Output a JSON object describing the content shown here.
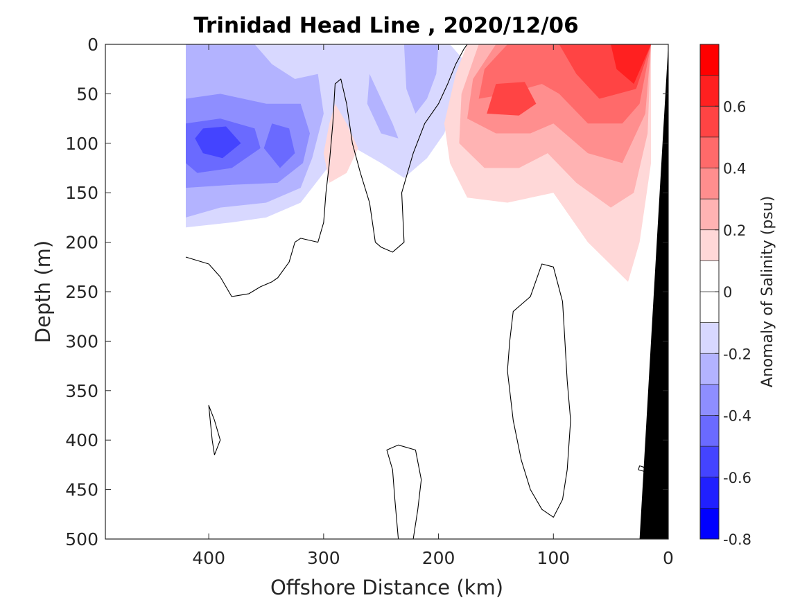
{
  "chart_data": {
    "type": "contour",
    "title": "Trinidad Head Line , 2020/12/06",
    "xlabel": "Offshore Distance (km)",
    "ylabel": "Depth (m)",
    "xlim": [
      490,
      0
    ],
    "ylim": [
      0,
      500
    ],
    "x_reversed": true,
    "y_reversed": true,
    "x_ticks": [
      400,
      300,
      200,
      100,
      0
    ],
    "y_ticks": [
      0,
      50,
      100,
      150,
      200,
      250,
      300,
      350,
      400,
      450,
      500
    ],
    "colorbar": {
      "label": "Anomaly of Salinity (psu)",
      "range": [
        -0.8,
        0.8
      ],
      "tick_values": [
        0.6,
        0.4,
        0.2,
        0,
        -0.2,
        -0.4,
        -0.6,
        -0.8
      ],
      "tick_labels": [
        "0.6",
        "0.4",
        "0.2",
        "0",
        "-0.2",
        "-0.4",
        "-0.6",
        "-0.8"
      ],
      "levels": [
        -0.8,
        -0.7,
        -0.6,
        -0.5,
        -0.4,
        -0.3,
        -0.2,
        -0.1,
        0.1,
        0.2,
        0.3,
        0.4,
        0.5,
        0.6,
        0.7,
        0.8
      ],
      "colors": [
        "#0000ff",
        "#2020ff",
        "#4444ff",
        "#6a6aff",
        "#8e8eff",
        "#b3b3ff",
        "#d8d8ff",
        "#ffffff",
        "#ffffff",
        "#ffd8d8",
        "#ffb3b3",
        "#ff8e8e",
        "#ff6a6a",
        "#ff4444",
        "#ff2020",
        "#ff0000"
      ]
    },
    "fill_regions": [
      {
        "level": -0.1,
        "color": "#d8d8ff",
        "points": [
          [
            420,
            0
          ],
          [
            190,
            0
          ],
          [
            175,
            20
          ],
          [
            185,
            55
          ],
          [
            195,
            90
          ],
          [
            210,
            115
          ],
          [
            230,
            135
          ],
          [
            250,
            120
          ],
          [
            280,
            100
          ],
          [
            300,
            130
          ],
          [
            320,
            160
          ],
          [
            350,
            175
          ],
          [
            380,
            180
          ],
          [
            420,
            185
          ]
        ]
      },
      {
        "level": -0.2,
        "color": "#b3b3ff",
        "points": [
          [
            420,
            0
          ],
          [
            360,
            0
          ],
          [
            345,
            20
          ],
          [
            325,
            35
          ],
          [
            305,
            30
          ],
          [
            300,
            70
          ],
          [
            310,
            115
          ],
          [
            320,
            145
          ],
          [
            350,
            160
          ],
          [
            390,
            165
          ],
          [
            420,
            175
          ]
        ]
      },
      {
        "level": -0.2,
        "color": "#b3b3ff",
        "points": [
          [
            260,
            30
          ],
          [
            240,
            80
          ],
          [
            235,
            95
          ],
          [
            250,
            90
          ],
          [
            262,
            60
          ]
        ]
      },
      {
        "level": -0.2,
        "color": "#b3b3ff",
        "points": [
          [
            230,
            0
          ],
          [
            200,
            0
          ],
          [
            202,
            30
          ],
          [
            210,
            55
          ],
          [
            220,
            70
          ],
          [
            228,
            45
          ]
        ]
      },
      {
        "level": -0.3,
        "color": "#8e8eff",
        "points": [
          [
            420,
            55
          ],
          [
            390,
            50
          ],
          [
            350,
            60
          ],
          [
            320,
            60
          ],
          [
            312,
            90
          ],
          [
            318,
            120
          ],
          [
            340,
            140
          ],
          [
            380,
            142
          ],
          [
            420,
            145
          ]
        ]
      },
      {
        "level": -0.4,
        "color": "#6a6aff",
        "points": [
          [
            420,
            80
          ],
          [
            390,
            75
          ],
          [
            360,
            85
          ],
          [
            355,
            105
          ],
          [
            380,
            125
          ],
          [
            410,
            130
          ],
          [
            420,
            120
          ]
        ]
      },
      {
        "level": -0.4,
        "color": "#6a6aff",
        "points": [
          [
            345,
            80
          ],
          [
            330,
            85
          ],
          [
            325,
            110
          ],
          [
            338,
            125
          ],
          [
            352,
            105
          ]
        ]
      },
      {
        "level": -0.5,
        "color": "#4444ff",
        "points": [
          [
            405,
            85
          ],
          [
            385,
            83
          ],
          [
            372,
            100
          ],
          [
            388,
            115
          ],
          [
            405,
            110
          ],
          [
            412,
            95
          ]
        ]
      },
      {
        "level": 0.1,
        "color": "#ffd8d8",
        "points": [
          [
            290,
            60
          ],
          [
            280,
            80
          ],
          [
            270,
            105
          ],
          [
            280,
            130
          ],
          [
            295,
            140
          ],
          [
            300,
            110
          ],
          [
            295,
            80
          ]
        ]
      },
      {
        "level": 0.1,
        "color": "#ffd8d8",
        "points": [
          [
            175,
            0
          ],
          [
            15,
            0
          ],
          [
            15,
            120
          ],
          [
            25,
            200
          ],
          [
            35,
            240
          ],
          [
            70,
            200
          ],
          [
            100,
            150
          ],
          [
            140,
            160
          ],
          [
            175,
            155
          ],
          [
            190,
            120
          ],
          [
            195,
            80
          ],
          [
            185,
            30
          ]
        ]
      },
      {
        "level": 0.2,
        "color": "#ffb3b3",
        "points": [
          [
            165,
            0
          ],
          [
            15,
            0
          ],
          [
            18,
            90
          ],
          [
            30,
            150
          ],
          [
            50,
            165
          ],
          [
            80,
            140
          ],
          [
            105,
            110
          ],
          [
            130,
            125
          ],
          [
            160,
            125
          ],
          [
            182,
            100
          ],
          [
            180,
            50
          ]
        ]
      },
      {
        "level": 0.3,
        "color": "#ff8e8e",
        "points": [
          [
            150,
            0
          ],
          [
            15,
            0
          ],
          [
            20,
            70
          ],
          [
            40,
            120
          ],
          [
            70,
            110
          ],
          [
            100,
            80
          ],
          [
            120,
            90
          ],
          [
            150,
            90
          ],
          [
            175,
            75
          ],
          [
            170,
            35
          ]
        ]
      },
      {
        "level": 0.4,
        "color": "#ff6a6a",
        "points": [
          [
            140,
            0
          ],
          [
            15,
            0
          ],
          [
            25,
            60
          ],
          [
            40,
            80
          ],
          [
            70,
            80
          ],
          [
            95,
            50
          ],
          [
            110,
            40
          ],
          [
            140,
            50
          ],
          [
            165,
            55
          ],
          [
            160,
            25
          ]
        ]
      },
      {
        "level": 0.5,
        "color": "#ff4444",
        "points": [
          [
            95,
            0
          ],
          [
            15,
            0
          ],
          [
            28,
            45
          ],
          [
            60,
            55
          ],
          [
            80,
            30
          ]
        ]
      },
      {
        "level": 0.5,
        "color": "#ff4444",
        "points": [
          [
            150,
            40
          ],
          [
            125,
            38
          ],
          [
            115,
            60
          ],
          [
            130,
            72
          ],
          [
            158,
            70
          ]
        ]
      },
      {
        "level": 0.6,
        "color": "#ff2020",
        "points": [
          [
            50,
            0
          ],
          [
            15,
            0
          ],
          [
            30,
            40
          ],
          [
            45,
            25
          ]
        ]
      }
    ],
    "zero_contours": [
      {
        "closed": false,
        "points": [
          [
            420,
            215
          ],
          [
            400,
            222
          ],
          [
            390,
            235
          ],
          [
            380,
            255
          ],
          [
            365,
            252
          ],
          [
            355,
            245
          ],
          [
            345,
            240
          ],
          [
            340,
            236
          ],
          [
            330,
            220
          ],
          [
            325,
            200
          ],
          [
            320,
            196
          ],
          [
            305,
            200
          ],
          [
            300,
            180
          ],
          [
            298,
            150
          ],
          [
            295,
            120
          ],
          [
            292,
            80
          ],
          [
            290,
            40
          ],
          [
            285,
            35
          ],
          [
            280,
            60
          ],
          [
            275,
            100
          ],
          [
            268,
            130
          ],
          [
            260,
            160
          ],
          [
            255,
            200
          ],
          [
            250,
            205
          ],
          [
            240,
            210
          ],
          [
            230,
            200
          ],
          [
            232,
            150
          ],
          [
            222,
            110
          ],
          [
            212,
            80
          ],
          [
            200,
            60
          ],
          [
            192,
            40
          ],
          [
            185,
            20
          ],
          [
            178,
            5
          ],
          [
            175,
            0
          ]
        ]
      },
      {
        "closed": true,
        "points": [
          [
            110,
            222
          ],
          [
            100,
            225
          ],
          [
            92,
            260
          ],
          [
            90,
            300
          ],
          [
            88,
            340
          ],
          [
            85,
            380
          ],
          [
            88,
            430
          ],
          [
            92,
            460
          ],
          [
            100,
            478
          ],
          [
            110,
            470
          ],
          [
            120,
            450
          ],
          [
            128,
            420
          ],
          [
            135,
            380
          ],
          [
            140,
            330
          ],
          [
            138,
            300
          ],
          [
            135,
            270
          ],
          [
            120,
            255
          ]
        ]
      },
      {
        "closed": true,
        "points": [
          [
            400,
            365
          ],
          [
            397,
            400
          ],
          [
            395,
            415
          ],
          [
            390,
            400
          ],
          [
            395,
            380
          ]
        ]
      },
      {
        "closed": false,
        "points": [
          [
            235,
            500
          ],
          [
            238,
            460
          ],
          [
            240,
            430
          ],
          [
            245,
            410
          ],
          [
            235,
            405
          ],
          [
            220,
            410
          ],
          [
            215,
            440
          ],
          [
            218,
            470
          ],
          [
            222,
            500
          ]
        ]
      },
      {
        "closed": true,
        "points": [
          [
            25,
            426
          ],
          [
            20,
            428
          ],
          [
            20,
            432
          ],
          [
            26,
            430
          ]
        ]
      }
    ],
    "land_mask": {
      "color": "#000000",
      "points": [
        [
          0,
          0
        ],
        [
          0,
          500
        ],
        [
          25,
          500
        ],
        [
          20,
          400
        ],
        [
          15,
          300
        ],
        [
          10,
          200
        ],
        [
          5,
          100
        ]
      ]
    }
  }
}
